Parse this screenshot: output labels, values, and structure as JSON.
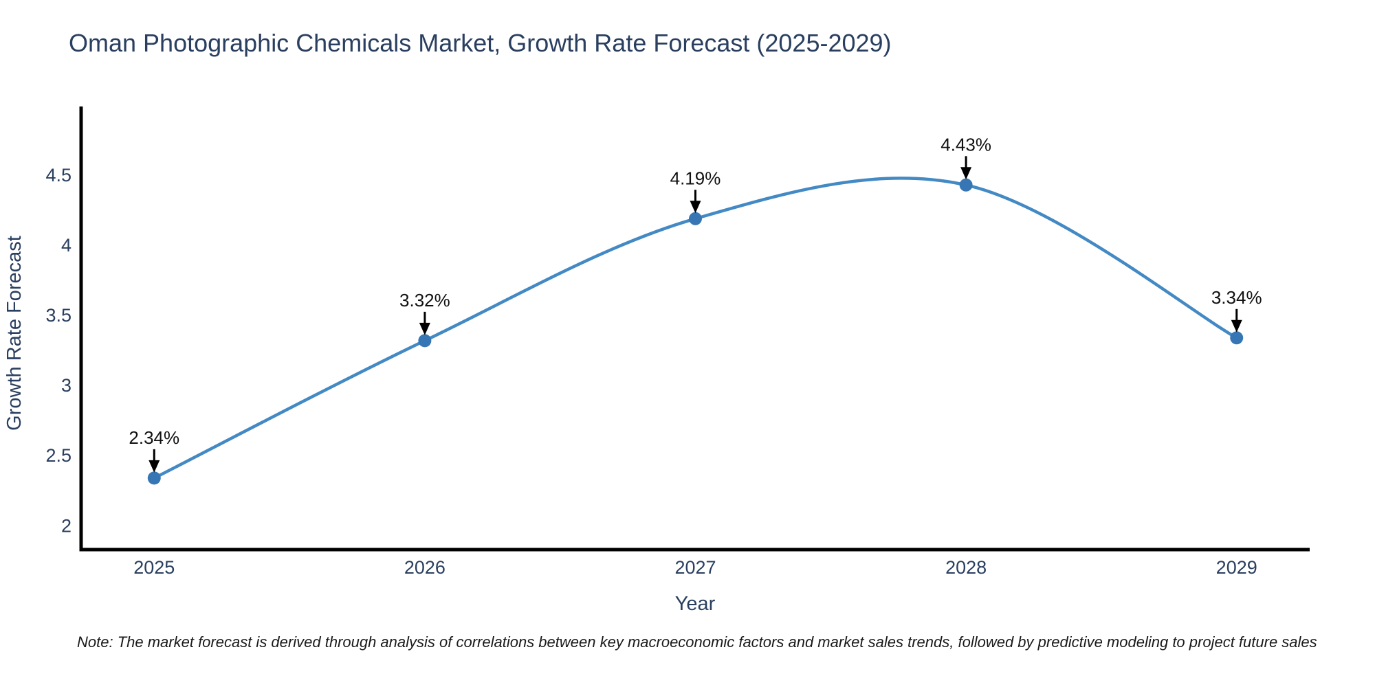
{
  "chart_data": {
    "type": "line",
    "title": "Oman Photographic Chemicals Market, Growth Rate Forecast (2025-2029)",
    "xlabel": "Year",
    "ylabel": "Growth Rate Forecast",
    "note": "Note: The market forecast is derived through analysis of correlations between key macroeconomic factors and market sales trends, followed by predictive modeling to project future sales",
    "x": [
      2025,
      2026,
      2027,
      2028,
      2029
    ],
    "values": [
      2.34,
      3.32,
      4.19,
      4.43,
      3.34
    ],
    "point_labels": [
      "2.34%",
      "3.32%",
      "4.19%",
      "4.43%",
      "3.34%"
    ],
    "x_tick_labels": [
      "2025",
      "2026",
      "2027",
      "2028",
      "2029"
    ],
    "y_tick_labels": [
      "2",
      "2.5",
      "3",
      "3.5",
      "4",
      "4.5"
    ],
    "y_tick_values": [
      2,
      2.5,
      3,
      3.5,
      4,
      4.5
    ],
    "xlim": [
      2024.73,
      2029.27
    ],
    "ylim": [
      1.83,
      4.99
    ],
    "line_shape": "spline",
    "grid": false,
    "legend": "none",
    "colors": {
      "line": "#4389c3",
      "marker": "#3776b4",
      "axis": "#000000",
      "text": "#2a3f5f",
      "annotation": "#000000"
    }
  }
}
